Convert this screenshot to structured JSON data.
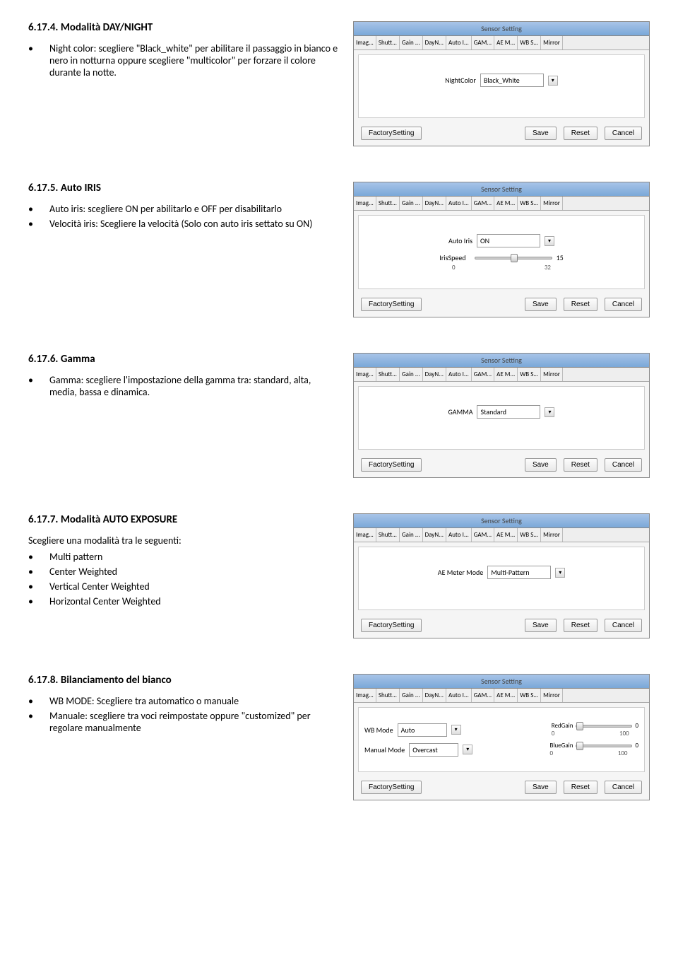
{
  "tabs": [
    "Imag...",
    "Shutt...",
    "Gain ...",
    "DayN...",
    "Auto I...",
    "GAM...",
    "AE M...",
    "WB S...",
    "Mirror"
  ],
  "panelTitle": "Sensor Setting",
  "footer": {
    "factory": "FactorySetting",
    "save": "Save",
    "reset": "Reset",
    "cancel": "Cancel"
  },
  "s1": {
    "heading": "6.17.4.  Modalità DAY/NIGHT",
    "b1": "Night color: scegliere \"Black_white\" per abilitare il passaggio in bianco e nero in notturna oppure scegliere \"multicolor\" per forzare il colore durante la notte.",
    "fieldLabel": "NightColor",
    "fieldValue": "Black_White"
  },
  "s2": {
    "heading": "6.17.5.  Auto IRIS",
    "b1": "Auto iris: scegliere ON per abilitarlo e OFF per disabilitarlo",
    "b2": "Velocità iris: Scegliere la velocità (Solo con auto iris settato su ON)",
    "fieldLabel": "Auto Iris",
    "fieldValue": "ON",
    "sliderLabel": "IrisSpeed",
    "sliderVal": "15",
    "sliderMin": "0",
    "sliderMax": "32",
    "sliderPct": 47
  },
  "s3": {
    "heading": "6.17.6.  Gamma",
    "b1": "Gamma: scegliere l'impostazione della gamma tra: standard, alta, media, bassa e dinamica.",
    "fieldLabel": "GAMMA",
    "fieldValue": "Standard"
  },
  "s4": {
    "heading": "6.17.7.  Modalità AUTO EXPOSURE",
    "intro": "Scegliere una modalità tra le seguenti:",
    "b1": "Multi pattern",
    "b2": "Center Weighted",
    "b3": "Vertical Center Weighted",
    "b4": "Horizontal Center Weighted",
    "fieldLabel": "AE Meter Mode",
    "fieldValue": "Multi-Pattern"
  },
  "s5": {
    "heading": "6.17.8.  Bilanciamento del bianco",
    "b1": "WB MODE: Scegliere tra automatico o manuale",
    "b2": "Manuale: scegliere tra voci reimpostate oppure \"customized\" per regolare manualmente",
    "f1Label": "WB Mode",
    "f1Value": "Auto",
    "f2Label": "Manual Mode",
    "f2Value": "Overcast",
    "rgLabel": "RedGain",
    "bgLabel": "BlueGain",
    "gMin": "0",
    "gMax": "100",
    "gVal": "0",
    "rgPct": 0,
    "bgPct": 0
  }
}
